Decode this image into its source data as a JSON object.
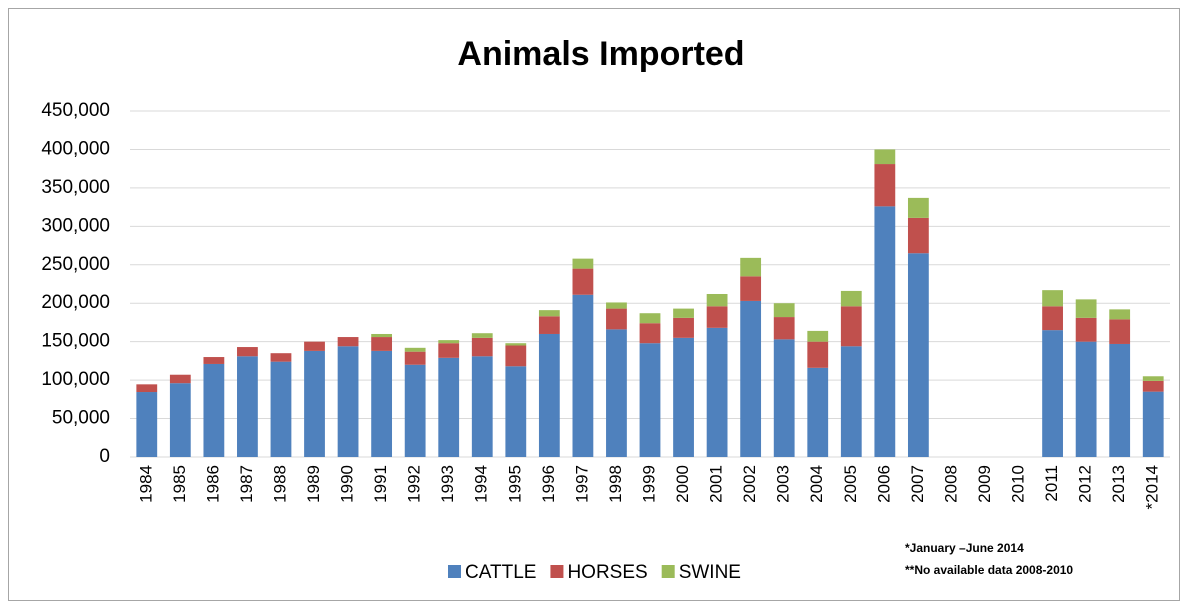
{
  "chart_data": {
    "type": "bar",
    "stacked": true,
    "title": "Animals Imported",
    "categories": [
      "1984",
      "1985",
      "1986",
      "1987",
      "1988",
      "1989",
      "1990",
      "1991",
      "1992",
      "1993",
      "1994",
      "1995",
      "1996",
      "1997",
      "1998",
      "1999",
      "2000",
      "2001",
      "2002",
      "2003",
      "2004",
      "2005",
      "2006",
      "2007",
      "2008",
      "2009",
      "2010",
      "2011",
      "2012",
      "2013",
      "*2014"
    ],
    "series": [
      {
        "name": "CATTLE",
        "color": "#4f81bd",
        "values": [
          84500,
          96000,
          121000,
          131000,
          124000,
          138000,
          144000,
          138000,
          120000,
          129000,
          131000,
          118000,
          160000,
          211000,
          166000,
          148000,
          155000,
          168000,
          203000,
          153000,
          116000,
          144000,
          326000,
          265000,
          null,
          null,
          null,
          165000,
          150000,
          147000,
          85000
        ]
      },
      {
        "name": "HORSES",
        "color": "#c0504d",
        "values": [
          10000,
          11000,
          9000,
          12000,
          11000,
          12000,
          12000,
          18000,
          17000,
          19000,
          24000,
          27000,
          23000,
          34000,
          27000,
          26000,
          26000,
          28000,
          32000,
          29000,
          34000,
          52000,
          55000,
          46000,
          null,
          null,
          null,
          31000,
          31000,
          32000,
          14000
        ]
      },
      {
        "name": "SWINE",
        "color": "#9bbb59",
        "values": [
          0,
          0,
          0,
          0,
          0,
          0,
          0,
          4000,
          5000,
          4000,
          6000,
          3000,
          8000,
          13000,
          8000,
          13000,
          12000,
          16000,
          24000,
          18000,
          14000,
          20000,
          19000,
          26000,
          null,
          null,
          null,
          21000,
          24000,
          13000,
          6000
        ]
      }
    ],
    "ylim": [
      0,
      450000
    ],
    "yticks": [
      0,
      {
        "value": 50000,
        "label": "50,000"
      },
      {
        "value": 100000,
        "label": "100,000"
      },
      {
        "value": 150000,
        "label": "150,000"
      },
      {
        "value": 200000,
        "label": "200,000"
      },
      {
        "value": 250000,
        "label": "250,000"
      },
      {
        "value": 300000,
        "label": "300,000"
      },
      {
        "value": 350000,
        "label": "350,000"
      },
      {
        "value": 400000,
        "label": "400,000"
      },
      {
        "value": 450000,
        "label": "450,000"
      }
    ],
    "grid": true,
    "legend": "bottom",
    "annotations": [
      "*January –June 2014",
      "**No available  data 2008-2010"
    ]
  }
}
